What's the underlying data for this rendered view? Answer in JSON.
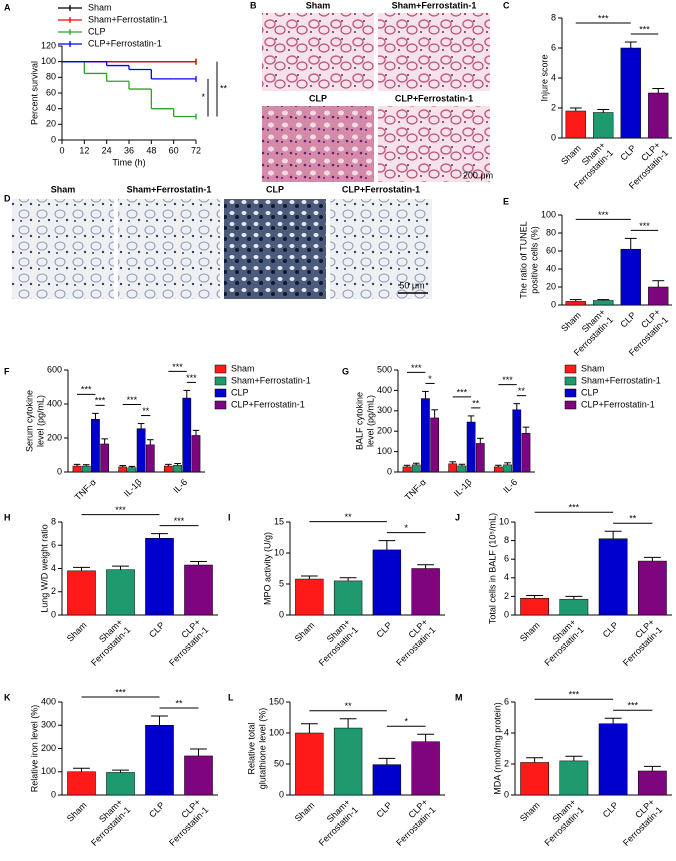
{
  "chart_data": [
    {
      "label": "A",
      "type": "step",
      "x": [
        0,
        12,
        24,
        36,
        48,
        60,
        72
      ],
      "xlim": [
        0,
        72
      ],
      "xticks": [
        0,
        12,
        24,
        36,
        48,
        60,
        72
      ],
      "ylim": [
        0,
        120
      ],
      "yticks": [
        0,
        20,
        40,
        60,
        80,
        100,
        120
      ],
      "xlabel": "Time (h)",
      "ylabel": [
        "Percent survival"
      ],
      "series": [
        {
          "name": "Sham",
          "color": "#000000",
          "values": [
            100,
            100,
            100,
            100,
            100,
            100,
            100
          ]
        },
        {
          "name": "Sham+Ferrostatin-1",
          "color": "#ff0000",
          "values": [
            100,
            100,
            100,
            100,
            100,
            100,
            100
          ]
        },
        {
          "name": "CLP",
          "color": "#2ca02c",
          "values": [
            100,
            85,
            75,
            65,
            40,
            30,
            30
          ]
        },
        {
          "name": "CLP+Ferrostatin-1",
          "color": "#0000ff",
          "values": [
            100,
            100,
            95,
            90,
            78,
            78,
            78
          ]
        }
      ],
      "annotations": [
        {
          "between": [
            "CLP+Ferrostatin-1",
            "CLP"
          ],
          "text": "*"
        },
        {
          "between": [
            "Sham+Ferrostatin-1",
            "CLP"
          ],
          "text": "**"
        }
      ]
    },
    {
      "label": "C",
      "type": "bar",
      "categories": [
        "Sham",
        "Sham+ Ferrostatin-1",
        "CLP",
        "CLP+ Ferrostatin-1"
      ],
      "values": [
        1.8,
        1.7,
        6.0,
        3.0
      ],
      "errors": [
        0.2,
        0.2,
        0.4,
        0.3
      ],
      "colors": [
        "#ff1a1a",
        "#1f9a6e",
        "#0000cc",
        "#7f057f"
      ],
      "ylabel": [
        "Injure score"
      ],
      "ylim": [
        0,
        8
      ],
      "yticks": [
        0,
        2,
        4,
        6,
        8
      ],
      "significance": [
        {
          "between": [
            "Sham",
            "CLP"
          ],
          "text": "***"
        },
        {
          "between": [
            "CLP",
            "CLP+ Ferrostatin-1"
          ],
          "text": "***"
        }
      ]
    },
    {
      "label": "E",
      "type": "bar",
      "categories": [
        "Sham",
        "Sham+ Ferrostatin-1",
        "CLP",
        "CLP+ Ferrostatin-1"
      ],
      "values": [
        4,
        5,
        62,
        20
      ],
      "errors": [
        2,
        1,
        12,
        7
      ],
      "colors": [
        "#ff1a1a",
        "#1f9a6e",
        "#0000cc",
        "#7f057f"
      ],
      "ylabel": [
        "The ratio of TUNEL",
        "positive cells (%)"
      ],
      "ylim": [
        0,
        100
      ],
      "yticks": [
        0,
        20,
        40,
        60,
        80,
        100
      ],
      "significance": [
        {
          "between": [
            "Sham",
            "CLP"
          ],
          "text": "***"
        },
        {
          "between": [
            "CLP",
            "CLP+ Ferrostatin-1"
          ],
          "text": "***"
        }
      ]
    },
    {
      "label": "F",
      "type": "bar",
      "categories": [
        "TNF-α",
        "IL-1β",
        "IL-6"
      ],
      "ylabel": [
        "Serum cytokine",
        "level (pg/mL)"
      ],
      "ylim": [
        0,
        600
      ],
      "yticks": [
        0,
        200,
        400,
        600
      ],
      "series": [
        {
          "name": "Sham",
          "color": "#ff1a1a",
          "values": [
            35,
            30,
            35
          ],
          "errors": [
            10,
            8,
            10
          ]
        },
        {
          "name": "Sham+Ferrostatin-1",
          "color": "#1f9a6e",
          "values": [
            35,
            25,
            40
          ],
          "errors": [
            8,
            8,
            10
          ]
        },
        {
          "name": "CLP",
          "color": "#0000cc",
          "values": [
            310,
            255,
            435
          ],
          "errors": [
            35,
            30,
            45
          ]
        },
        {
          "name": "CLP+Ferrostatin-1",
          "color": "#7f057f",
          "values": [
            165,
            160,
            215
          ],
          "errors": [
            30,
            30,
            30
          ]
        }
      ],
      "significance": [
        {
          "category": "TNF-α",
          "between": [
            "Sham",
            "CLP"
          ],
          "text": "***"
        },
        {
          "category": "TNF-α",
          "between": [
            "CLP",
            "CLP+Ferrostatin-1"
          ],
          "text": "***"
        },
        {
          "category": "IL-1β",
          "between": [
            "Sham",
            "CLP"
          ],
          "text": "***"
        },
        {
          "category": "IL-1β",
          "between": [
            "CLP",
            "CLP+Ferrostatin-1"
          ],
          "text": "**"
        },
        {
          "category": "IL-6",
          "between": [
            "Sham",
            "CLP"
          ],
          "text": "***"
        },
        {
          "category": "IL-6",
          "between": [
            "CLP",
            "CLP+Ferrostatin-1"
          ],
          "text": "***"
        }
      ]
    },
    {
      "label": "G",
      "type": "bar",
      "categories": [
        "TNF-α",
        "IL-1β",
        "IL-6"
      ],
      "ylabel": [
        "BALF cytokine",
        "level (pg/mL)"
      ],
      "ylim": [
        0,
        500
      ],
      "yticks": [
        0,
        100,
        200,
        300,
        400,
        500
      ],
      "series": [
        {
          "name": "Sham",
          "color": "#ff1a1a",
          "values": [
            25,
            40,
            25
          ],
          "errors": [
            8,
            10,
            8
          ]
        },
        {
          "name": "Sham+Ferrostatin-1",
          "color": "#1f9a6e",
          "values": [
            35,
            30,
            35
          ],
          "errors": [
            8,
            8,
            10
          ]
        },
        {
          "name": "CLP",
          "color": "#0000cc",
          "values": [
            360,
            245,
            305
          ],
          "errors": [
            35,
            30,
            30
          ]
        },
        {
          "name": "CLP+Ferrostatin-1",
          "color": "#7f057f",
          "values": [
            265,
            140,
            190
          ],
          "errors": [
            40,
            25,
            30
          ]
        }
      ],
      "significance": [
        {
          "category": "TNF-α",
          "between": [
            "Sham",
            "CLP"
          ],
          "text": "***"
        },
        {
          "category": "TNF-α",
          "between": [
            "CLP",
            "CLP+Ferrostatin-1"
          ],
          "text": "*"
        },
        {
          "category": "IL-1β",
          "between": [
            "Sham",
            "CLP"
          ],
          "text": "***"
        },
        {
          "category": "IL-1β",
          "between": [
            "CLP",
            "CLP+Ferrostatin-1"
          ],
          "text": "**"
        },
        {
          "category": "IL-6",
          "between": [
            "Sham",
            "CLP"
          ],
          "text": "***"
        },
        {
          "category": "IL-6",
          "between": [
            "CLP",
            "CLP+Ferrostatin-1"
          ],
          "text": "**"
        }
      ]
    },
    {
      "label": "H",
      "type": "bar",
      "categories": [
        "Sham",
        "Sham+ Ferrostatin-1",
        "CLP",
        "CLP+ Ferrostatin-1"
      ],
      "values": [
        3.8,
        3.9,
        6.6,
        4.3
      ],
      "errors": [
        0.3,
        0.3,
        0.4,
        0.3
      ],
      "colors": [
        "#ff1a1a",
        "#1f9a6e",
        "#0000cc",
        "#7f057f"
      ],
      "ylabel": [
        "Lung W/D weight ratio"
      ],
      "ylim": [
        0,
        8
      ],
      "yticks": [
        0,
        2,
        4,
        6,
        8
      ],
      "significance": [
        {
          "between": [
            "Sham",
            "CLP"
          ],
          "text": "***"
        },
        {
          "between": [
            "CLP",
            "CLP+ Ferrostatin-1"
          ],
          "text": "***"
        }
      ]
    },
    {
      "label": "I",
      "type": "bar",
      "categories": [
        "Sham",
        "Sham+ Ferrostatin-1",
        "CLP",
        "CLP+ Ferrostatin-1"
      ],
      "values": [
        5.8,
        5.5,
        10.5,
        7.5
      ],
      "errors": [
        0.5,
        0.5,
        1.5,
        0.6
      ],
      "colors": [
        "#ff1a1a",
        "#1f9a6e",
        "#0000cc",
        "#7f057f"
      ],
      "ylabel": [
        "MPO activity (U/g)"
      ],
      "ylim": [
        0,
        15
      ],
      "yticks": [
        0,
        5,
        10,
        15
      ],
      "significance": [
        {
          "between": [
            "Sham",
            "CLP"
          ],
          "text": "**"
        },
        {
          "between": [
            "CLP",
            "CLP+ Ferrostatin-1"
          ],
          "text": "*"
        }
      ]
    },
    {
      "label": "J",
      "type": "bar",
      "categories": [
        "Sham",
        "Sham+ Ferrostatin-1",
        "CLP",
        "CLP+ Ferrostatin-1"
      ],
      "values": [
        1.8,
        1.7,
        8.2,
        5.8
      ],
      "errors": [
        0.3,
        0.3,
        0.8,
        0.4
      ],
      "colors": [
        "#ff1a1a",
        "#1f9a6e",
        "#0000cc",
        "#7f057f"
      ],
      "ylabel": [
        "Total cells in BALF (10⁵/mL)"
      ],
      "ylim": [
        0,
        10
      ],
      "yticks": [
        0,
        2,
        4,
        6,
        8,
        10
      ],
      "significance": [
        {
          "between": [
            "Sham",
            "CLP"
          ],
          "text": "***"
        },
        {
          "between": [
            "CLP",
            "CLP+ Ferrostatin-1"
          ],
          "text": "**"
        }
      ]
    },
    {
      "label": "K",
      "type": "bar",
      "categories": [
        "Sham",
        "Sham+ Ferrostatin-1",
        "CLP",
        "CLP+ Ferrostatin-1"
      ],
      "values": [
        100,
        97,
        300,
        168
      ],
      "errors": [
        15,
        10,
        40,
        30
      ],
      "colors": [
        "#ff1a1a",
        "#1f9a6e",
        "#0000cc",
        "#7f057f"
      ],
      "ylabel": [
        "Relative iron level (%)"
      ],
      "ylim": [
        0,
        400
      ],
      "yticks": [
        0,
        100,
        200,
        300,
        400
      ],
      "significance": [
        {
          "between": [
            "Sham",
            "CLP"
          ],
          "text": "***"
        },
        {
          "between": [
            "CLP",
            "CLP+ Ferrostatin-1"
          ],
          "text": "**"
        }
      ]
    },
    {
      "label": "L",
      "type": "bar",
      "categories": [
        "Sham",
        "Sham+ Ferrostatin-1",
        "CLP",
        "CLP+ Ferrostatin-1"
      ],
      "values": [
        100,
        108,
        49,
        86
      ],
      "errors": [
        15,
        15,
        10,
        12
      ],
      "colors": [
        "#ff1a1a",
        "#1f9a6e",
        "#0000cc",
        "#7f057f"
      ],
      "ylabel": [
        "Relative total",
        "glutathione level (%)"
      ],
      "ylim": [
        0,
        150
      ],
      "yticks": [
        0,
        50,
        100,
        150
      ],
      "significance": [
        {
          "between": [
            "Sham",
            "CLP"
          ],
          "text": "**"
        },
        {
          "between": [
            "CLP",
            "CLP+ Ferrostatin-1"
          ],
          "text": "*"
        }
      ]
    },
    {
      "label": "M",
      "type": "bar",
      "categories": [
        "Sham",
        "Sham+ Ferrostatin-1",
        "CLP",
        "CLP+ Ferrostatin-1"
      ],
      "values": [
        2.1,
        2.2,
        4.6,
        1.55
      ],
      "errors": [
        0.3,
        0.3,
        0.35,
        0.3
      ],
      "colors": [
        "#ff1a1a",
        "#1f9a6e",
        "#0000cc",
        "#7f057f"
      ],
      "ylabel": [
        "MDA (nmol/mg protein)"
      ],
      "ylim": [
        0,
        6
      ],
      "yticks": [
        0,
        2,
        4,
        6
      ],
      "significance": [
        {
          "between": [
            "Sham",
            "CLP"
          ],
          "text": "***"
        },
        {
          "between": [
            "CLP",
            "CLP+ Ferrostatin-1"
          ],
          "text": "***"
        }
      ]
    }
  ],
  "images": [
    {
      "label": "B",
      "captions": [
        "Sham",
        "Sham+Ferrostatin-1",
        "CLP",
        "CLP+Ferrostatin-1"
      ],
      "scale_bar": "200 μm"
    },
    {
      "label": "D",
      "captions": [
        "Sham",
        "Sham+Ferrostatin-1",
        "CLP",
        "CLP+Ferrostatin-1"
      ],
      "scale_bar": "50 μm"
    }
  ]
}
